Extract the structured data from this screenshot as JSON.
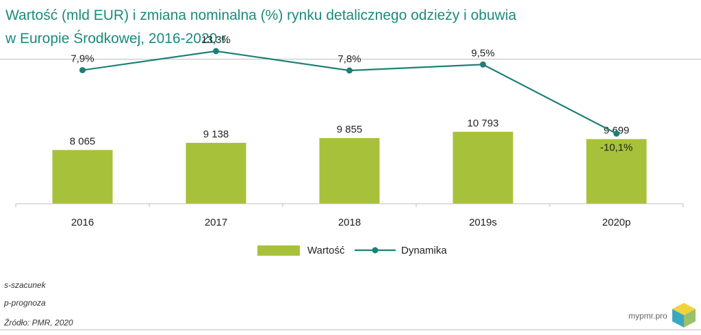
{
  "title": {
    "line1": "Wartość (mld EUR) i zmiana nominalna (%) rynku detalicznego odzieży i obuwia",
    "line2": "w Europie Środkowej, 2016-2020 r."
  },
  "chart_data": {
    "type": "bar",
    "categories": [
      "2016",
      "2017",
      "2018",
      "2019s",
      "2020p"
    ],
    "series": [
      {
        "name": "Wartość",
        "type": "bar",
        "values": [
          8065,
          9138,
          9855,
          10793,
          9699
        ],
        "labels": [
          "8 065",
          "9 138",
          "9 855",
          "10 793",
          "9 699"
        ],
        "color": "#a8c13a"
      },
      {
        "name": "Dynamika",
        "type": "line",
        "values": [
          7.9,
          13.3,
          7.8,
          9.5,
          -10.1
        ],
        "labels": [
          "7,9%",
          "13,3%",
          "7,8%",
          "9,5%",
          "-10,1%"
        ],
        "color": "#1e7f74"
      }
    ],
    "bar_axis_range": [
      0,
      20000
    ],
    "line_axis_range": [
      -30,
      15
    ],
    "grid": false,
    "legend_position": "bottom"
  },
  "notes": {
    "s": "s-szacunek",
    "p": "p-prognoza",
    "source": "Źródło: PMR, 2020"
  },
  "brand": {
    "text": "mypmr.pro",
    "colors": [
      "#f0d23a",
      "#3aa7c2",
      "#9bc06a"
    ]
  }
}
